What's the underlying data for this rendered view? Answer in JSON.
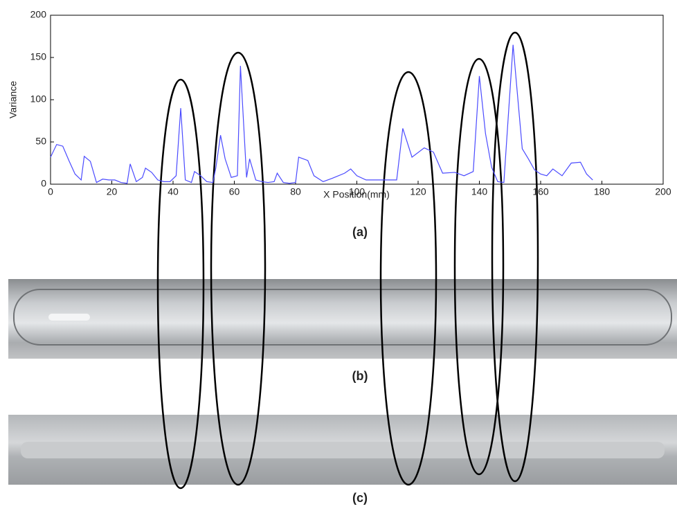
{
  "chart_data": {
    "type": "line",
    "xlabel": "X Position(mm)",
    "ylabel": "Variance",
    "annotations": [
      "(a)",
      "(b)",
      "(c)"
    ],
    "x": [
      0,
      2,
      4,
      6,
      8,
      10,
      11,
      13,
      15,
      17,
      19,
      21,
      23,
      25,
      26,
      28,
      30,
      31,
      33,
      35,
      37,
      39,
      41,
      42.5,
      44,
      46,
      47,
      49,
      51,
      53,
      54,
      55.5,
      57,
      59,
      61,
      62,
      64,
      65,
      67,
      69,
      71,
      73,
      74,
      76,
      78,
      80,
      81,
      84,
      86,
      89,
      92,
      96,
      98,
      100,
      103,
      106,
      108,
      110,
      113,
      115,
      118,
      122,
      125,
      128,
      132,
      135,
      138,
      140,
      142,
      144,
      146,
      148,
      151,
      154,
      156,
      158,
      160,
      162,
      164,
      167,
      170,
      173,
      175,
      177
    ],
    "series": [
      {
        "color": "#4a4aff",
        "values": [
          32,
          47,
          45,
          28,
          12,
          5,
          33,
          27,
          2,
          6,
          5,
          5,
          2,
          1,
          24,
          3,
          8,
          19,
          14,
          5,
          3,
          3,
          10,
          90,
          5,
          2,
          15,
          10,
          3,
          2,
          20,
          58,
          30,
          8,
          10,
          140,
          8,
          30,
          5,
          3,
          2,
          3,
          13,
          2,
          1,
          2,
          32,
          28,
          10,
          3,
          7,
          13,
          18,
          10,
          5,
          5,
          5,
          5,
          5,
          66,
          32,
          43,
          38,
          13,
          14,
          10,
          15,
          128,
          60,
          20,
          3,
          2,
          165,
          42,
          30,
          17,
          12,
          10,
          18,
          10,
          25,
          26,
          12,
          5
        ]
      }
    ],
    "xlim": [
      0,
      200
    ],
    "ylim": [
      0,
      200
    ],
    "xticks": [
      0,
      20,
      40,
      60,
      80,
      100,
      120,
      140,
      160,
      180,
      200
    ],
    "yticks": [
      0,
      50,
      100,
      150,
      200
    ]
  }
}
